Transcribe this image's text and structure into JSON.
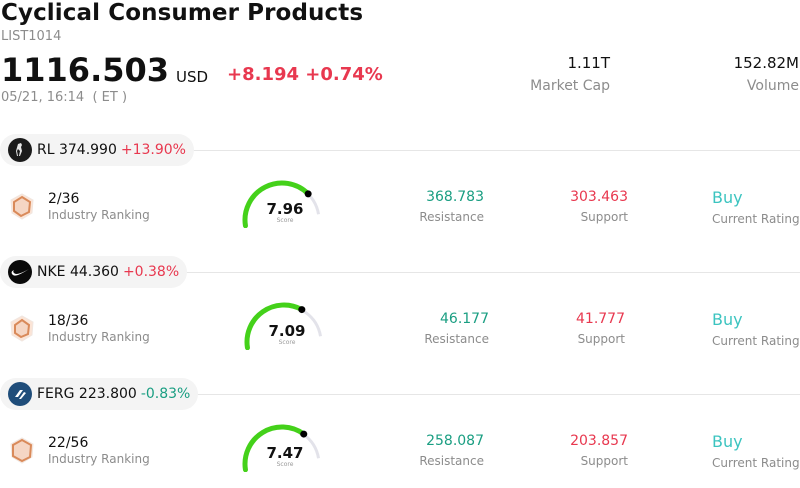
{
  "header": {
    "title": "Cyclical Consumer Products",
    "code": "LIST1014",
    "price": "1116.503",
    "currency": "USD",
    "change": "+8.194 +0.74%",
    "timestamp": "05/21, 16:14  ( ET )",
    "market_cap": {
      "value": "1.11T",
      "label": "Market Cap"
    },
    "volume": {
      "value": "152.82M",
      "label": "Volume"
    }
  },
  "colors": {
    "up": "#e8384f",
    "down": "#1a9e82",
    "rating": "#3cc4c0",
    "gauge_fill": "#44d11a",
    "gauge_track": "#e3e3ea"
  },
  "stocks": [
    {
      "symbol_price": "RL 374.990",
      "pct_change": "+13.90%",
      "direction": "up",
      "logo_icon": "polo-horse-icon",
      "rank": "2/36",
      "rank_label": "Industry Ranking",
      "score": "7.96",
      "score_fraction": 0.8,
      "score_label": "Score",
      "resistance": "368.783",
      "resistance_label": "Resistance",
      "support": "303.463",
      "support_label": "Support",
      "rating": "Buy",
      "rating_label": "Current Rating"
    },
    {
      "symbol_price": "NKE 44.360",
      "pct_change": "+0.38%",
      "direction": "up",
      "logo_icon": "swoosh-icon",
      "rank": "18/36",
      "rank_label": "Industry Ranking",
      "score": "7.09",
      "score_fraction": 0.71,
      "score_label": "Score",
      "resistance": "46.177",
      "resistance_label": "Resistance",
      "support": "41.777",
      "support_label": "Support",
      "rating": "Buy",
      "rating_label": "Current Rating"
    },
    {
      "symbol_price": "FERG 223.800",
      "pct_change": "-0.83%",
      "direction": "down",
      "logo_icon": "ferguson-logo-icon",
      "rank": "22/56",
      "rank_label": "Industry Ranking",
      "score": "7.47",
      "score_fraction": 0.75,
      "score_label": "Score",
      "resistance": "258.087",
      "resistance_label": "Resistance",
      "support": "203.857",
      "support_label": "Support",
      "rating": "Buy",
      "rating_label": "Current Rating"
    }
  ]
}
